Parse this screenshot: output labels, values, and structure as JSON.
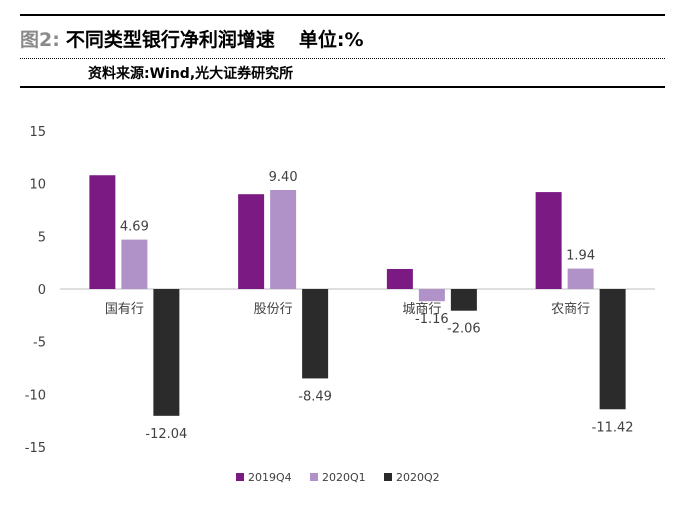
{
  "header": {
    "figure_label": "图2:",
    "title": "不同类型银行净利润增速",
    "unit": "单位:%",
    "source": "资料来源:Wind,光大证券研究所"
  },
  "colors": {
    "2019Q4": "#7b1a82",
    "2020Q1": "#b092c9",
    "2020Q2": "#2b2b2b",
    "axis": "#bfbfbf",
    "text": "#404040"
  },
  "chart_data": {
    "type": "bar",
    "title": "不同类型银行净利润增速",
    "xlabel": "",
    "ylabel": "",
    "ylim": [
      -15,
      15
    ],
    "yticks": [
      15,
      10,
      5,
      0,
      -5,
      -10,
      -15
    ],
    "categories": [
      "国有行",
      "股份行",
      "城商行",
      "农商行"
    ],
    "series": [
      {
        "name": "2019Q4",
        "values": [
          10.8,
          9.0,
          1.9,
          9.2
        ]
      },
      {
        "name": "2020Q1",
        "values": [
          4.69,
          9.4,
          -1.16,
          1.94
        ]
      },
      {
        "name": "2020Q2",
        "values": [
          -12.04,
          -8.49,
          -2.06,
          -11.42
        ]
      }
    ],
    "data_labels": [
      {
        "series": "2020Q1",
        "category": "国有行",
        "text": "4.69"
      },
      {
        "series": "2020Q2",
        "category": "国有行",
        "text": "-12.04"
      },
      {
        "series": "2020Q1",
        "category": "股份行",
        "text": "9.40"
      },
      {
        "series": "2020Q2",
        "category": "股份行",
        "text": "-8.49"
      },
      {
        "series": "2020Q1",
        "category": "城商行",
        "text": "-1.16"
      },
      {
        "series": "2020Q2",
        "category": "城商行",
        "text": "-2.06"
      },
      {
        "series": "2020Q1",
        "category": "农商行",
        "text": "1.94"
      },
      {
        "series": "2020Q2",
        "category": "农商行",
        "text": "-11.42"
      }
    ],
    "legend": [
      "2019Q4",
      "2020Q1",
      "2020Q2"
    ],
    "legend_position": "bottom-center",
    "grid": false
  }
}
